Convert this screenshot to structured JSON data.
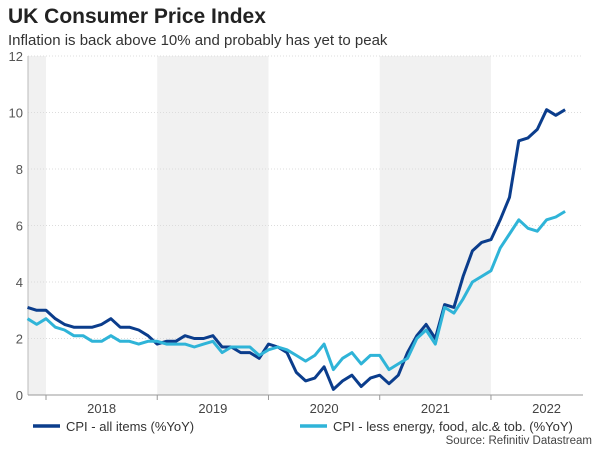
{
  "chart_data": {
    "type": "line",
    "title": "UK Consumer Price Index",
    "subtitle": "Inflation is back above 10% and probably has yet to peak",
    "source": "Source: Refinitiv Datastream",
    "x_start": "2017-11",
    "x_end": "2022-09",
    "frequency": "monthly",
    "x_ticks": [
      "2018",
      "2019",
      "2020",
      "2021",
      "2022"
    ],
    "ylim": [
      0,
      12
    ],
    "y_ticks": [
      0,
      2,
      4,
      6,
      8,
      10,
      12
    ],
    "grid": "horizontal dotted",
    "shaded_years": [
      "2017",
      "2019",
      "2021"
    ],
    "legend_placement": "bottom",
    "series": [
      {
        "name": "CPI - all items (%YoY)",
        "color": "#0b3d8c",
        "values": [
          3.1,
          3.0,
          3.0,
          2.7,
          2.5,
          2.4,
          2.4,
          2.4,
          2.5,
          2.7,
          2.4,
          2.4,
          2.3,
          2.1,
          1.8,
          1.9,
          1.9,
          2.1,
          2.0,
          2.0,
          2.1,
          1.7,
          1.7,
          1.5,
          1.5,
          1.3,
          1.8,
          1.7,
          1.5,
          0.8,
          0.5,
          0.6,
          1.0,
          0.2,
          0.5,
          0.7,
          0.3,
          0.6,
          0.7,
          0.4,
          0.7,
          1.5,
          2.1,
          2.5,
          2.0,
          3.2,
          3.1,
          4.2,
          5.1,
          5.4,
          5.5,
          6.2,
          7.0,
          9.0,
          9.1,
          9.4,
          10.1,
          9.9,
          10.1
        ]
      },
      {
        "name": "CPI - less energy, food, alc.& tob. (%YoY)",
        "color": "#2fb4d8",
        "values": [
          2.7,
          2.5,
          2.7,
          2.4,
          2.3,
          2.1,
          2.1,
          1.9,
          1.9,
          2.1,
          1.9,
          1.9,
          1.8,
          1.9,
          1.9,
          1.8,
          1.8,
          1.8,
          1.7,
          1.8,
          1.9,
          1.5,
          1.7,
          1.7,
          1.7,
          1.4,
          1.6,
          1.7,
          1.6,
          1.4,
          1.2,
          1.4,
          1.8,
          0.9,
          1.3,
          1.5,
          1.1,
          1.4,
          1.4,
          0.9,
          1.1,
          1.3,
          2.0,
          2.3,
          1.8,
          3.1,
          2.9,
          3.4,
          4.0,
          4.2,
          4.4,
          5.2,
          5.7,
          6.2,
          5.9,
          5.8,
          6.2,
          6.3,
          6.5
        ]
      }
    ]
  }
}
